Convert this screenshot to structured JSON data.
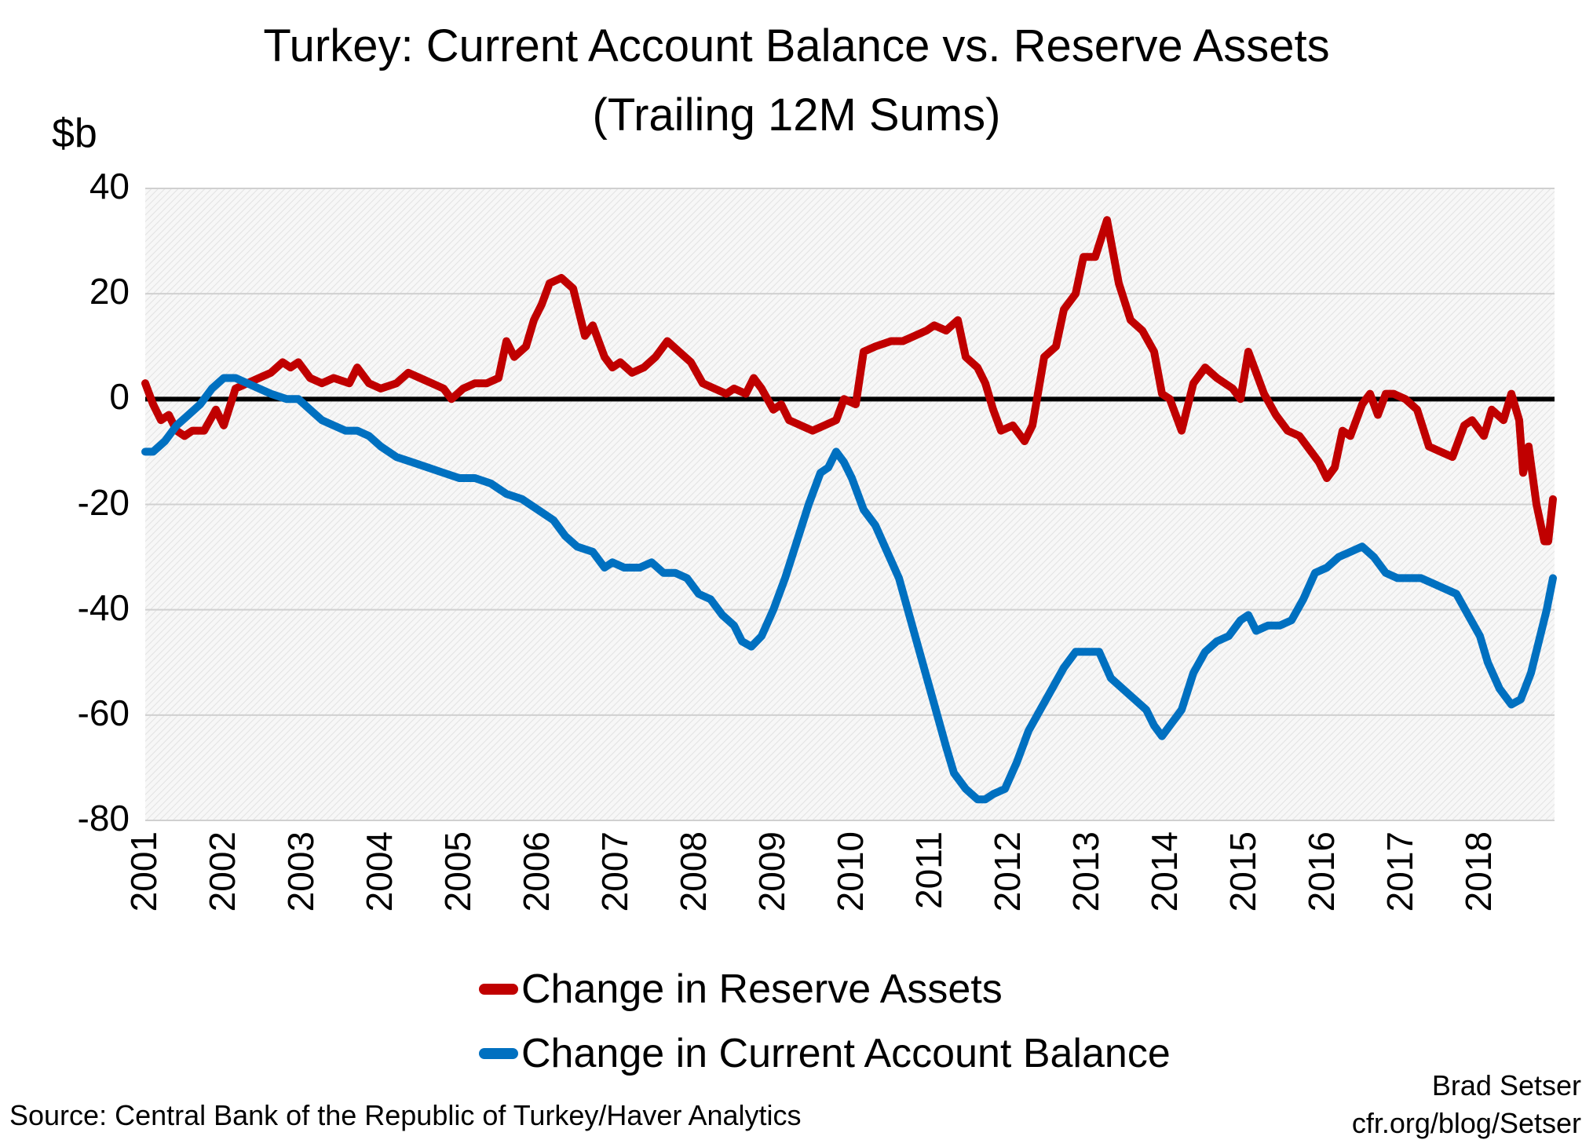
{
  "chart_data": {
    "type": "line",
    "title": "Turkey: Current Account Balance vs. Reserve Assets",
    "subtitle": "(Trailing 12M Sums)",
    "ylabel": "$b",
    "ylim": [
      -80,
      40
    ],
    "yticks": [
      40,
      20,
      0,
      -20,
      -40,
      -60,
      -80
    ],
    "xlim": [
      2001,
      2018.95
    ],
    "xticks": [
      "2001",
      "2002",
      "2003",
      "2004",
      "2005",
      "2006",
      "2007",
      "2008",
      "2009",
      "2010",
      "2011",
      "2012",
      "2013",
      "2014",
      "2015",
      "2016",
      "2017",
      "2018"
    ],
    "grid": true,
    "zero_line": true,
    "legend_position": "bottom",
    "series": [
      {
        "name": "Change in Reserve Assets",
        "color": "#c00000",
        "points": [
          [
            2001.0,
            3
          ],
          [
            2001.1,
            -1
          ],
          [
            2001.2,
            -4
          ],
          [
            2001.3,
            -3
          ],
          [
            2001.4,
            -6
          ],
          [
            2001.5,
            -7
          ],
          [
            2001.6,
            -6
          ],
          [
            2001.75,
            -6
          ],
          [
            2001.9,
            -2
          ],
          [
            2002.0,
            -5
          ],
          [
            2002.15,
            2
          ],
          [
            2002.3,
            3
          ],
          [
            2002.45,
            4
          ],
          [
            2002.6,
            5
          ],
          [
            2002.75,
            7
          ],
          [
            2002.85,
            6
          ],
          [
            2002.95,
            7
          ],
          [
            2003.1,
            4
          ],
          [
            2003.25,
            3
          ],
          [
            2003.4,
            4
          ],
          [
            2003.6,
            3
          ],
          [
            2003.7,
            6
          ],
          [
            2003.85,
            3
          ],
          [
            2004.0,
            2
          ],
          [
            2004.2,
            3
          ],
          [
            2004.35,
            5
          ],
          [
            2004.5,
            4
          ],
          [
            2004.65,
            3
          ],
          [
            2004.8,
            2
          ],
          [
            2004.9,
            0
          ],
          [
            2005.05,
            2
          ],
          [
            2005.2,
            3
          ],
          [
            2005.35,
            3
          ],
          [
            2005.5,
            4
          ],
          [
            2005.6,
            11
          ],
          [
            2005.7,
            8
          ],
          [
            2005.85,
            10
          ],
          [
            2005.95,
            15
          ],
          [
            2006.05,
            18
          ],
          [
            2006.15,
            22
          ],
          [
            2006.3,
            23
          ],
          [
            2006.45,
            21
          ],
          [
            2006.6,
            12
          ],
          [
            2006.7,
            14
          ],
          [
            2006.85,
            8
          ],
          [
            2006.95,
            6
          ],
          [
            2007.05,
            7
          ],
          [
            2007.2,
            5
          ],
          [
            2007.35,
            6
          ],
          [
            2007.5,
            8
          ],
          [
            2007.65,
            11
          ],
          [
            2007.8,
            9
          ],
          [
            2007.95,
            7
          ],
          [
            2008.1,
            3
          ],
          [
            2008.25,
            2
          ],
          [
            2008.4,
            1
          ],
          [
            2008.5,
            2
          ],
          [
            2008.65,
            1
          ],
          [
            2008.75,
            4
          ],
          [
            2008.85,
            2
          ],
          [
            2009.0,
            -2
          ],
          [
            2009.1,
            -1
          ],
          [
            2009.2,
            -4
          ],
          [
            2009.35,
            -5
          ],
          [
            2009.5,
            -6
          ],
          [
            2009.65,
            -5
          ],
          [
            2009.8,
            -4
          ],
          [
            2009.9,
            0
          ],
          [
            2010.05,
            -1
          ],
          [
            2010.15,
            9
          ],
          [
            2010.3,
            10
          ],
          [
            2010.5,
            11
          ],
          [
            2010.65,
            11
          ],
          [
            2010.8,
            12
          ],
          [
            2010.95,
            13
          ],
          [
            2011.05,
            14
          ],
          [
            2011.2,
            13
          ],
          [
            2011.35,
            15
          ],
          [
            2011.45,
            8
          ],
          [
            2011.6,
            6
          ],
          [
            2011.7,
            3
          ],
          [
            2011.8,
            -2
          ],
          [
            2011.9,
            -6
          ],
          [
            2012.05,
            -5
          ],
          [
            2012.2,
            -8
          ],
          [
            2012.3,
            -5
          ],
          [
            2012.45,
            8
          ],
          [
            2012.6,
            10
          ],
          [
            2012.7,
            17
          ],
          [
            2012.85,
            20
          ],
          [
            2012.95,
            27
          ],
          [
            2013.1,
            27
          ],
          [
            2013.25,
            34
          ],
          [
            2013.4,
            22
          ],
          [
            2013.55,
            15
          ],
          [
            2013.7,
            13
          ],
          [
            2013.85,
            9
          ],
          [
            2013.95,
            1
          ],
          [
            2014.05,
            0
          ],
          [
            2014.2,
            -6
          ],
          [
            2014.35,
            3
          ],
          [
            2014.5,
            6
          ],
          [
            2014.65,
            4
          ],
          [
            2014.85,
            2
          ],
          [
            2014.95,
            0
          ],
          [
            2015.05,
            9
          ],
          [
            2015.15,
            5
          ],
          [
            2015.25,
            1
          ],
          [
            2015.4,
            -3
          ],
          [
            2015.55,
            -6
          ],
          [
            2015.7,
            -7
          ],
          [
            2015.85,
            -10
          ],
          [
            2015.95,
            -12
          ],
          [
            2016.05,
            -15
          ],
          [
            2016.15,
            -13
          ],
          [
            2016.25,
            -6
          ],
          [
            2016.35,
            -7
          ],
          [
            2016.5,
            -1
          ],
          [
            2016.6,
            1
          ],
          [
            2016.7,
            -3
          ],
          [
            2016.8,
            1
          ],
          [
            2016.9,
            1
          ],
          [
            2017.05,
            0
          ],
          [
            2017.2,
            -2
          ],
          [
            2017.35,
            -9
          ],
          [
            2017.5,
            -10
          ],
          [
            2017.65,
            -11
          ],
          [
            2017.8,
            -5
          ],
          [
            2017.9,
            -4
          ],
          [
            2018.05,
            -7
          ],
          [
            2018.15,
            -2
          ],
          [
            2018.3,
            -4
          ],
          [
            2018.4,
            1
          ],
          [
            2018.5,
            -4
          ],
          [
            2018.55,
            -14
          ],
          [
            2018.62,
            -9
          ],
          [
            2018.72,
            -20
          ],
          [
            2018.82,
            -27
          ],
          [
            2018.87,
            -27
          ],
          [
            2018.93,
            -19
          ]
        ]
      },
      {
        "name": "Change in Current Account Balance",
        "color": "#0070c0",
        "points": [
          [
            2001.0,
            -10
          ],
          [
            2001.1,
            -10
          ],
          [
            2001.25,
            -8
          ],
          [
            2001.4,
            -5
          ],
          [
            2001.55,
            -3
          ],
          [
            2001.7,
            -1
          ],
          [
            2001.85,
            2
          ],
          [
            2002.0,
            4
          ],
          [
            2002.15,
            4
          ],
          [
            2002.3,
            3
          ],
          [
            2002.45,
            2
          ],
          [
            2002.6,
            1
          ],
          [
            2002.8,
            0
          ],
          [
            2002.95,
            0
          ],
          [
            2003.1,
            -2
          ],
          [
            2003.25,
            -4
          ],
          [
            2003.4,
            -5
          ],
          [
            2003.55,
            -6
          ],
          [
            2003.7,
            -6
          ],
          [
            2003.85,
            -7
          ],
          [
            2004.0,
            -9
          ],
          [
            2004.2,
            -11
          ],
          [
            2004.4,
            -12
          ],
          [
            2004.6,
            -13
          ],
          [
            2004.8,
            -14
          ],
          [
            2005.0,
            -15
          ],
          [
            2005.2,
            -15
          ],
          [
            2005.4,
            -16
          ],
          [
            2005.6,
            -18
          ],
          [
            2005.8,
            -19
          ],
          [
            2006.0,
            -21
          ],
          [
            2006.2,
            -23
          ],
          [
            2006.35,
            -26
          ],
          [
            2006.5,
            -28
          ],
          [
            2006.7,
            -29
          ],
          [
            2006.85,
            -32
          ],
          [
            2006.95,
            -31
          ],
          [
            2007.1,
            -32
          ],
          [
            2007.3,
            -32
          ],
          [
            2007.45,
            -31
          ],
          [
            2007.6,
            -33
          ],
          [
            2007.75,
            -33
          ],
          [
            2007.9,
            -34
          ],
          [
            2008.05,
            -37
          ],
          [
            2008.2,
            -38
          ],
          [
            2008.35,
            -41
          ],
          [
            2008.5,
            -43
          ],
          [
            2008.6,
            -46
          ],
          [
            2008.72,
            -47
          ],
          [
            2008.85,
            -45
          ],
          [
            2009.0,
            -40
          ],
          [
            2009.15,
            -34
          ],
          [
            2009.3,
            -27
          ],
          [
            2009.45,
            -20
          ],
          [
            2009.6,
            -14
          ],
          [
            2009.7,
            -13
          ],
          [
            2009.8,
            -10
          ],
          [
            2009.9,
            -12
          ],
          [
            2010.0,
            -15
          ],
          [
            2010.15,
            -21
          ],
          [
            2010.3,
            -24
          ],
          [
            2010.45,
            -29
          ],
          [
            2010.6,
            -34
          ],
          [
            2010.75,
            -42
          ],
          [
            2010.9,
            -50
          ],
          [
            2011.05,
            -58
          ],
          [
            2011.2,
            -66
          ],
          [
            2011.3,
            -71
          ],
          [
            2011.45,
            -74
          ],
          [
            2011.6,
            -76
          ],
          [
            2011.7,
            -76
          ],
          [
            2011.8,
            -75
          ],
          [
            2011.95,
            -74
          ],
          [
            2012.1,
            -69
          ],
          [
            2012.25,
            -63
          ],
          [
            2012.4,
            -59
          ],
          [
            2012.55,
            -55
          ],
          [
            2012.7,
            -51
          ],
          [
            2012.85,
            -48
          ],
          [
            2013.0,
            -48
          ],
          [
            2013.15,
            -48
          ],
          [
            2013.3,
            -53
          ],
          [
            2013.45,
            -55
          ],
          [
            2013.6,
            -57
          ],
          [
            2013.75,
            -59
          ],
          [
            2013.85,
            -62
          ],
          [
            2013.95,
            -64
          ],
          [
            2014.05,
            -62
          ],
          [
            2014.2,
            -59
          ],
          [
            2014.35,
            -52
          ],
          [
            2014.5,
            -48
          ],
          [
            2014.65,
            -46
          ],
          [
            2014.8,
            -45
          ],
          [
            2014.95,
            -42
          ],
          [
            2015.05,
            -41
          ],
          [
            2015.15,
            -44
          ],
          [
            2015.3,
            -43
          ],
          [
            2015.45,
            -43
          ],
          [
            2015.6,
            -42
          ],
          [
            2015.75,
            -38
          ],
          [
            2015.9,
            -33
          ],
          [
            2016.05,
            -32
          ],
          [
            2016.2,
            -30
          ],
          [
            2016.35,
            -29
          ],
          [
            2016.5,
            -28
          ],
          [
            2016.65,
            -30
          ],
          [
            2016.8,
            -33
          ],
          [
            2016.95,
            -34
          ],
          [
            2017.1,
            -34
          ],
          [
            2017.25,
            -34
          ],
          [
            2017.4,
            -35
          ],
          [
            2017.55,
            -36
          ],
          [
            2017.7,
            -37
          ],
          [
            2017.85,
            -41
          ],
          [
            2018.0,
            -45
          ],
          [
            2018.1,
            -50
          ],
          [
            2018.25,
            -55
          ],
          [
            2018.4,
            -58
          ],
          [
            2018.52,
            -57
          ],
          [
            2018.65,
            -52
          ],
          [
            2018.75,
            -46
          ],
          [
            2018.85,
            -40
          ],
          [
            2018.93,
            -34
          ]
        ]
      }
    ],
    "source": "Source: Central Bank of the Republic of Turkey/Haver Analytics",
    "credit": [
      "Brad Setser",
      "cfr.org/blog/Setser"
    ]
  }
}
